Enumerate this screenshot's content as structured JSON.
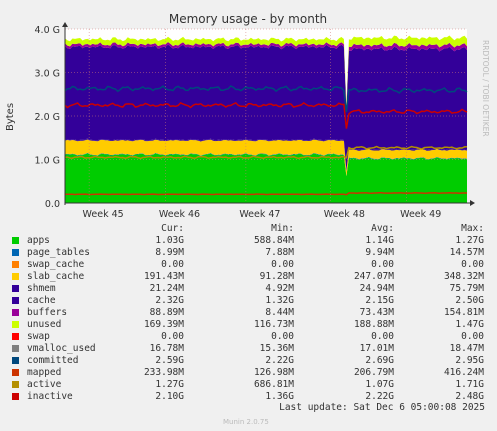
{
  "chart_data": {
    "type": "area",
    "title": "Memory usage - by month",
    "ylabel": "Bytes",
    "y_ticks": [
      "0.0",
      "1.0 G",
      "2.0 G",
      "3.0 G",
      "4.0 G"
    ],
    "ylim_gb": [
      0,
      4
    ],
    "x_ticks": [
      "Week 45",
      "Week 46",
      "Week 47",
      "Week 48",
      "Week 49"
    ],
    "x_tick_pos": [
      0.06,
      0.25,
      0.45,
      0.66,
      0.85
    ],
    "series": [
      {
        "name": "apps",
        "color": "#00cc00",
        "kind": "stack",
        "before": 1.12,
        "after": 1.03
      },
      {
        "name": "page_tables",
        "color": "#0066b3",
        "kind": "stack",
        "before": 0.01,
        "after": 0.01
      },
      {
        "name": "swap_cache",
        "color": "#ff8000",
        "kind": "stack",
        "before": 0.0,
        "after": 0.0
      },
      {
        "name": "slab_cache",
        "color": "#ffcc00",
        "kind": "stack",
        "before": 0.32,
        "after": 0.19
      },
      {
        "name": "shmem",
        "color": "#330099",
        "kind": "stack",
        "before": 0.02,
        "after": 0.02
      },
      {
        "name": "cache",
        "color": "#330099",
        "kind": "stack",
        "before": 2.15,
        "after": 2.32
      },
      {
        "name": "buffers",
        "color": "#990099",
        "kind": "stack",
        "before": 0.06,
        "after": 0.09
      },
      {
        "name": "unused",
        "color": "#ccff00",
        "kind": "stack",
        "before": 0.12,
        "after": 0.17
      },
      {
        "name": "committed",
        "color": "#00487d",
        "kind": "line",
        "before": 2.63,
        "after": 2.59
      },
      {
        "name": "inactive",
        "color": "#cc0000",
        "kind": "line",
        "before": 2.25,
        "after": 2.1
      },
      {
        "name": "active",
        "color": "#b38f00",
        "kind": "line",
        "before": 1.05,
        "after": 1.27
      },
      {
        "name": "mapped",
        "color": "#cc3300",
        "kind": "line",
        "before": 0.2,
        "after": 0.23
      }
    ],
    "break_at": 0.7
  },
  "legend": {
    "headers": [
      "Cur:",
      "Min:",
      "Avg:",
      "Max:"
    ],
    "rows": [
      {
        "name": "apps",
        "color": "#00cc00",
        "cur": "1.03G",
        "min": "588.84M",
        "avg": "1.14G",
        "max": "1.27G"
      },
      {
        "name": "page_tables",
        "color": "#0066b3",
        "cur": "8.99M",
        "min": "7.88M",
        "avg": "9.94M",
        "max": "14.57M"
      },
      {
        "name": "swap_cache",
        "color": "#ff8000",
        "cur": "0.00",
        "min": "0.00",
        "avg": "0.00",
        "max": "0.00"
      },
      {
        "name": "slab_cache",
        "color": "#ffcc00",
        "cur": "191.43M",
        "min": "91.28M",
        "avg": "247.07M",
        "max": "348.32M"
      },
      {
        "name": "shmem",
        "color": "#330099",
        "cur": "21.24M",
        "min": "4.92M",
        "avg": "24.94M",
        "max": "75.79M"
      },
      {
        "name": "cache",
        "color": "#330099",
        "cur": "2.32G",
        "min": "1.32G",
        "avg": "2.15G",
        "max": "2.50G"
      },
      {
        "name": "buffers",
        "color": "#990099",
        "cur": "88.89M",
        "min": "8.44M",
        "avg": "73.43M",
        "max": "154.81M"
      },
      {
        "name": "unused",
        "color": "#ccff00",
        "cur": "169.39M",
        "min": "116.73M",
        "avg": "188.88M",
        "max": "1.47G"
      },
      {
        "name": "swap",
        "color": "#ff0000",
        "cur": "0.00",
        "min": "0.00",
        "avg": "0.00",
        "max": "0.00"
      },
      {
        "name": "vmalloc_used",
        "color": "#808080",
        "cur": "16.78M",
        "min": "15.36M",
        "avg": "17.01M",
        "max": "18.47M"
      },
      {
        "name": "committed",
        "color": "#00487d",
        "cur": "2.59G",
        "min": "2.22G",
        "avg": "2.69G",
        "max": "2.95G"
      },
      {
        "name": "mapped",
        "color": "#cc3300",
        "cur": "233.98M",
        "min": "126.98M",
        "avg": "206.79M",
        "max": "416.24M"
      },
      {
        "name": "active",
        "color": "#b38f00",
        "cur": "1.27G",
        "min": "686.81M",
        "avg": "1.07G",
        "max": "1.71G"
      },
      {
        "name": "inactive",
        "color": "#cc0000",
        "cur": "2.10G",
        "min": "1.36G",
        "avg": "2.22G",
        "max": "2.48G"
      }
    ]
  },
  "footer": "Last update: Sat Dec  6 05:00:08 2025",
  "munin_version": "Munin 2.0.75",
  "rrdtool_credit": "RRDTOOL / TOBI OETIKER"
}
